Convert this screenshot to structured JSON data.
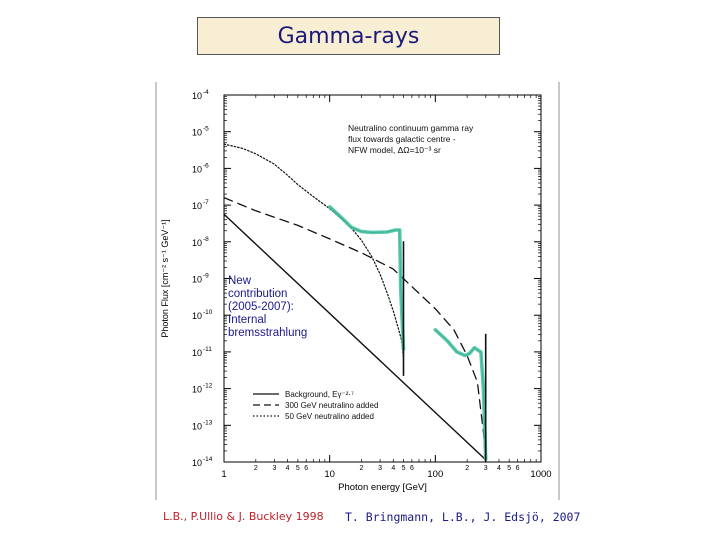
{
  "slide": {
    "title": "Gamma-rays",
    "credit_left": "L.B., P.Ullio & J. Buckley 1998",
    "credit_right": "T. Bringmann, L.B., J. Edsjö, 2007"
  },
  "chart_data": {
    "type": "line",
    "xscale": "log",
    "yscale": "log",
    "xlim": [
      1,
      1000
    ],
    "ylim": [
      1e-14,
      0.0001
    ],
    "xlabel": "Photon energy [GeV]",
    "ylabel": "Photon Flux [cm⁻² s⁻¹ GeV⁻¹]",
    "x_tick_labels": [
      {
        "value": 1,
        "label": "1"
      },
      {
        "value": 2,
        "label": "2"
      },
      {
        "value": 3,
        "label": "3"
      },
      {
        "value": 4,
        "label": "4"
      },
      {
        "value": 5,
        "label": "5"
      },
      {
        "value": 6,
        "label": "6"
      },
      {
        "value": 10,
        "label": "10"
      },
      {
        "value": 20,
        "label": "2"
      },
      {
        "value": 30,
        "label": "3"
      },
      {
        "value": 40,
        "label": "4"
      },
      {
        "value": 50,
        "label": "5"
      },
      {
        "value": 60,
        "label": "6"
      },
      {
        "value": 100,
        "label": "100"
      },
      {
        "value": 200,
        "label": "2"
      },
      {
        "value": 300,
        "label": "3"
      },
      {
        "value": 400,
        "label": "4"
      },
      {
        "value": 500,
        "label": "5"
      },
      {
        "value": 600,
        "label": "6"
      },
      {
        "value": 1000,
        "label": "1000"
      }
    ],
    "y_tick_labels": [
      {
        "exp": -4,
        "base": "10",
        "sup": "-4"
      },
      {
        "exp": -5,
        "base": "10",
        "sup": "-5"
      },
      {
        "exp": -6,
        "base": "10",
        "sup": "-6"
      },
      {
        "exp": -7,
        "base": "10",
        "sup": "-7"
      },
      {
        "exp": -8,
        "base": "10",
        "sup": "-8"
      },
      {
        "exp": -9,
        "base": "10",
        "sup": "-9"
      },
      {
        "exp": -10,
        "base": "10",
        "sup": "-10"
      },
      {
        "exp": -11,
        "base": "10",
        "sup": "-11"
      },
      {
        "exp": -12,
        "base": "10",
        "sup": "-12"
      },
      {
        "exp": -13,
        "base": "10",
        "sup": "-13"
      },
      {
        "exp": -14,
        "base": "10",
        "sup": "-14"
      }
    ],
    "annotation_top": [
      "Neutralino continuum gamma ray",
      "flux towards galactic centre -",
      "NFW model, ΔΩ=10⁻³ sr"
    ],
    "annotation_new": [
      "New",
      "contribution",
      "(2005-2007):",
      "Internal",
      "bremsstrahlung"
    ],
    "colors": {
      "axis": "#000000",
      "curve": "#111111",
      "highlight": "#3fc0a0",
      "annotation_new": "#1a1a8a",
      "highlight_dark": "#2a6a5a"
    },
    "legend_position": "bottom-center",
    "legend": [
      {
        "style": "solid",
        "text": "Background, Eγ⁻²·⁷"
      },
      {
        "style": "dashed",
        "text": "300 GeV neutralino added"
      },
      {
        "style": "dotted",
        "text": "50 GeV neutralino added"
      }
    ],
    "series": [
      {
        "style": "solid",
        "points": [
          [
            1,
            5.6e-08
          ],
          [
            300,
            1.15e-14
          ]
        ]
      },
      {
        "style": "dashed",
        "points": [
          [
            1,
            1.6e-07
          ],
          [
            2,
            7e-08
          ],
          [
            5,
            2.8e-08
          ],
          [
            10,
            1.2e-08
          ],
          [
            20,
            5e-09
          ],
          [
            40,
            1.8e-09
          ],
          [
            60,
            6e-10
          ],
          [
            100,
            1.5e-10
          ],
          [
            150,
            4e-11
          ],
          [
            200,
            8e-12
          ],
          [
            250,
            1.5e-12
          ],
          [
            300,
            2e-14
          ]
        ]
      },
      {
        "style": "dotted",
        "points": [
          [
            1,
            4.6e-06
          ],
          [
            1.5,
            3.5e-06
          ],
          [
            2,
            2.5e-06
          ],
          [
            3,
            1.3e-06
          ],
          [
            4,
            6.5e-07
          ],
          [
            5,
            3.6e-07
          ],
          [
            7,
            1.7e-07
          ],
          [
            10,
            8e-08
          ],
          [
            15,
            3e-08
          ],
          [
            20,
            1.1e-08
          ],
          [
            25,
            4e-09
          ],
          [
            30,
            1.3e-09
          ],
          [
            35,
            4e-10
          ],
          [
            40,
            1.3e-10
          ],
          [
            45,
            4e-11
          ],
          [
            48,
            2e-11
          ],
          [
            50,
            7e-12
          ]
        ]
      },
      {
        "style": "highlight",
        "points": [
          [
            10,
            9e-08
          ],
          [
            13,
            4.5e-08
          ],
          [
            16,
            2.5e-08
          ],
          [
            20,
            1.9e-08
          ],
          [
            25,
            1.8e-08
          ],
          [
            35,
            1.85e-08
          ],
          [
            42,
            2.1e-08
          ],
          [
            46,
            2.1e-08
          ],
          [
            47,
            5e-10
          ],
          [
            50,
            1.2e-11
          ]
        ]
      },
      {
        "style": "highlight",
        "points": [
          [
            100,
            4e-11
          ],
          [
            130,
            2e-11
          ],
          [
            160,
            1e-11
          ],
          [
            190,
            8e-12
          ],
          [
            210,
            9e-12
          ],
          [
            235,
            1.3e-11
          ],
          [
            255,
            1.1e-11
          ],
          [
            270,
            1e-11
          ],
          [
            285,
            1e-12
          ],
          [
            300,
            1.2e-14
          ]
        ]
      },
      {
        "style": "spike",
        "points": [
          [
            50,
            1e-08
          ],
          [
            50,
            2.3e-12
          ]
        ]
      },
      {
        "style": "spike",
        "points": [
          [
            300,
            3e-11
          ],
          [
            300,
            1e-14
          ]
        ]
      }
    ]
  }
}
